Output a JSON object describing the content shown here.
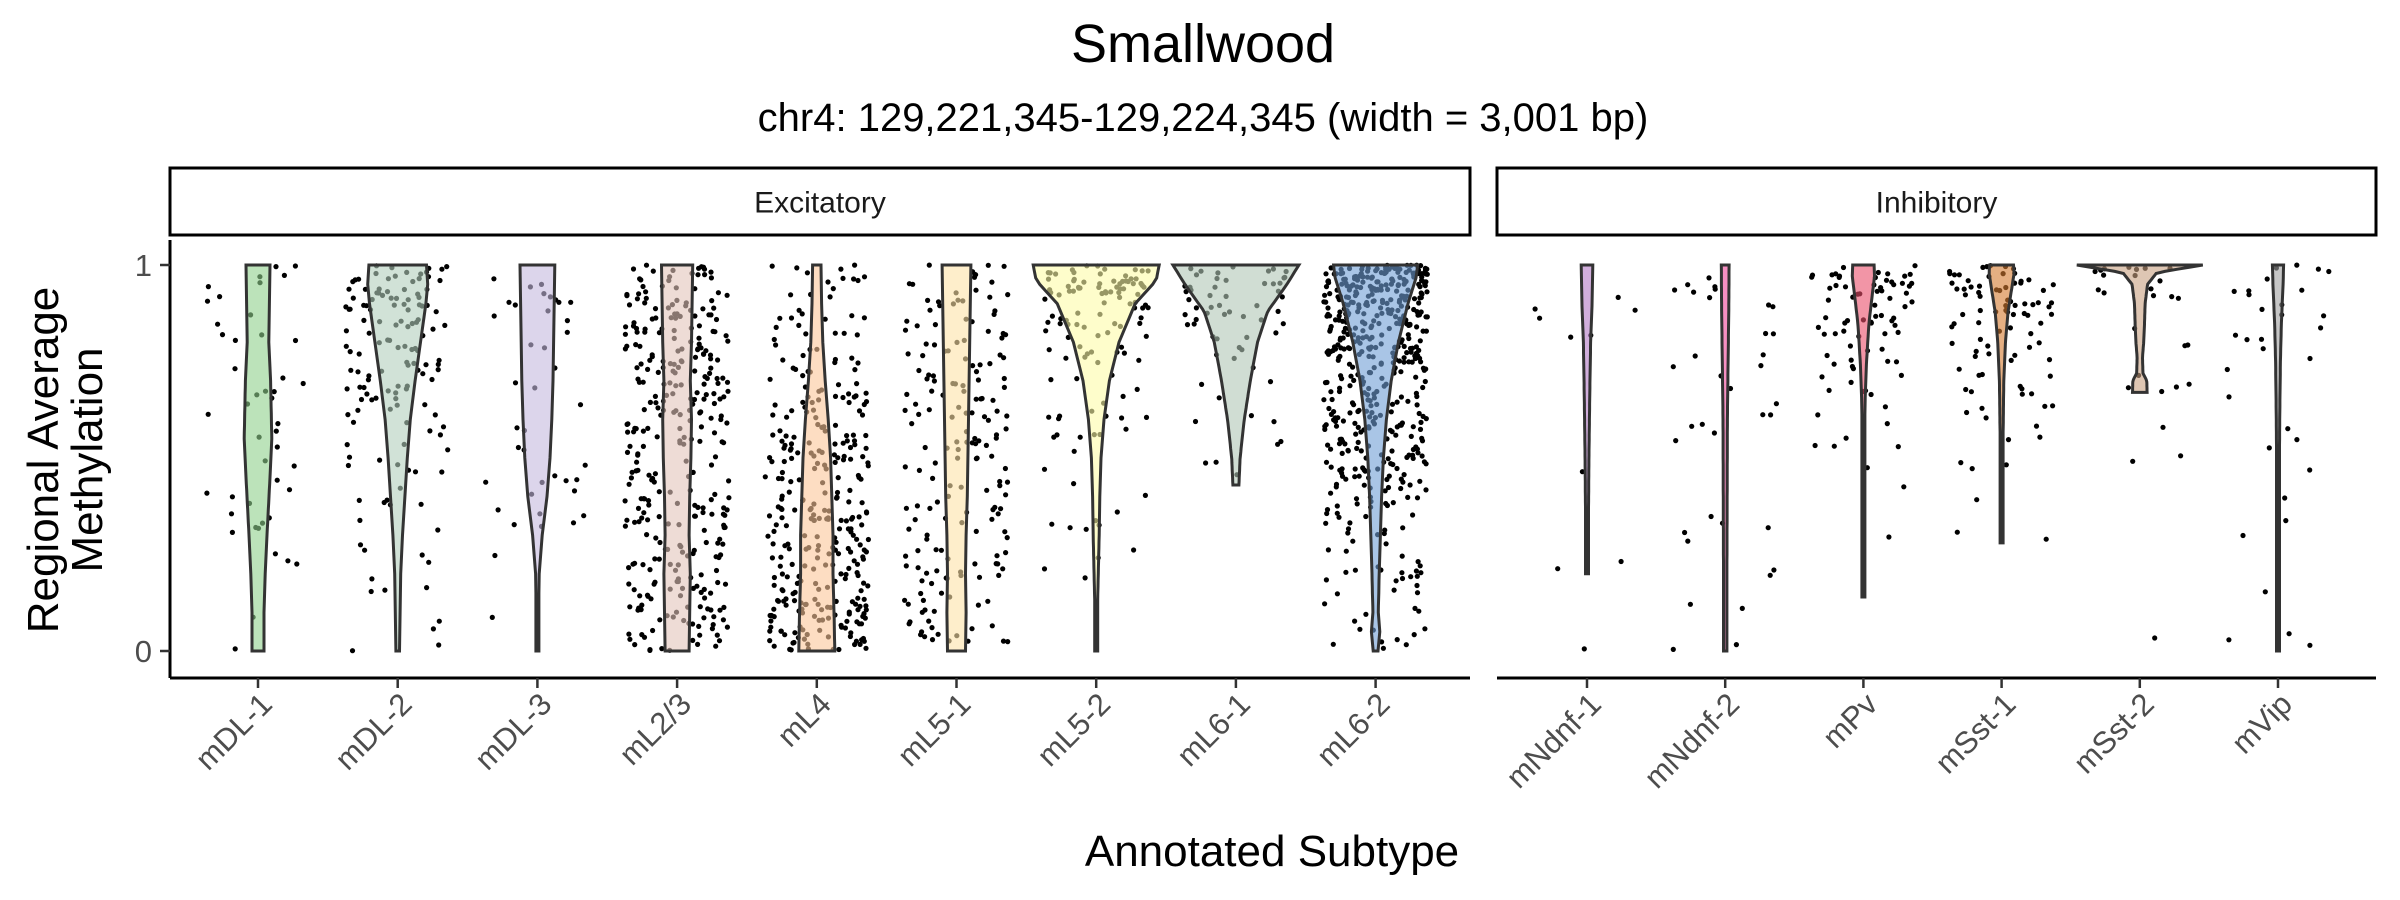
{
  "chart_data": {
    "type": "violin",
    "title": "Smallwood",
    "subtitle": "chr4: 129,221,345-129,224,345 (width = 3,001 bp)",
    "xlabel": "Annotated Subtype",
    "ylabel": [
      "Regional Average",
      "Methylation"
    ],
    "ylim": [
      0,
      1
    ],
    "yticks": [
      0,
      1
    ],
    "ytick_labels": [
      "0",
      "1"
    ],
    "grid": false,
    "points": "jittered raw observations",
    "facets": [
      {
        "name": "Excitatory",
        "categories": [
          {
            "label": "mDL-1",
            "color": "#8fd18c",
            "range": [
              0.0,
              1.0
            ],
            "density": [
              [
                0.0,
                1.0
              ],
              [
                0.1,
                1.0
              ],
              [
                0.2,
                1.2
              ],
              [
                0.3,
                1.5
              ],
              [
                0.45,
                2.0
              ],
              [
                0.55,
                2.3
              ],
              [
                0.7,
                2.1
              ],
              [
                0.8,
                1.8
              ],
              [
                0.9,
                1.9
              ],
              [
                1.0,
                2.0
              ]
            ],
            "npoints": 45
          },
          {
            "label": "mDL-2",
            "color": "#b2cfbd",
            "range": [
              0.0,
              1.0
            ],
            "density": [
              [
                0.0,
                0.3
              ],
              [
                0.1,
                0.4
              ],
              [
                0.2,
                0.5
              ],
              [
                0.3,
                0.8
              ],
              [
                0.4,
                1.2
              ],
              [
                0.5,
                1.6
              ],
              [
                0.6,
                2.1
              ],
              [
                0.7,
                2.9
              ],
              [
                0.8,
                3.8
              ],
              [
                0.9,
                4.7
              ],
              [
                0.95,
                5.0
              ],
              [
                1.0,
                4.8
              ]
            ],
            "npoints": 140
          },
          {
            "label": "mDL-3",
            "color": "#c4b9de",
            "range": [
              0.0,
              1.0
            ],
            "density": [
              [
                0.0,
                0.1
              ],
              [
                0.2,
                0.3
              ],
              [
                0.3,
                0.8
              ],
              [
                0.4,
                1.6
              ],
              [
                0.5,
                2.1
              ],
              [
                0.6,
                2.4
              ],
              [
                0.7,
                2.6
              ],
              [
                0.8,
                2.7
              ],
              [
                0.9,
                2.8
              ],
              [
                1.0,
                2.9
              ]
            ],
            "npoints": 40
          },
          {
            "label": "mL2/3",
            "color": "#e2c5bb",
            "range": [
              0.0,
              1.0
            ],
            "density": [
              [
                0.0,
                2.0
              ],
              [
                0.1,
                2.1
              ],
              [
                0.2,
                2.2
              ],
              [
                0.3,
                2.0
              ],
              [
                0.4,
                2.1
              ],
              [
                0.5,
                2.3
              ],
              [
                0.6,
                2.4
              ],
              [
                0.7,
                2.2
              ],
              [
                0.8,
                2.4
              ],
              [
                0.9,
                2.5
              ],
              [
                1.0,
                2.6
              ]
            ],
            "npoints": 330
          },
          {
            "label": "mL4",
            "color": "#fcc79a",
            "range": [
              0.0,
              1.0
            ],
            "density": [
              [
                0.0,
                3.0
              ],
              [
                0.08,
                2.9
              ],
              [
                0.2,
                2.7
              ],
              [
                0.3,
                2.7
              ],
              [
                0.4,
                2.5
              ],
              [
                0.5,
                2.3
              ],
              [
                0.6,
                1.9
              ],
              [
                0.7,
                1.4
              ],
              [
                0.8,
                1.0
              ],
              [
                0.9,
                0.8
              ],
              [
                1.0,
                0.7
              ]
            ],
            "npoints": 320
          },
          {
            "label": "mL5-1",
            "color": "#fde3a8",
            "range": [
              0.0,
              1.0
            ],
            "density": [
              [
                0.0,
                1.5
              ],
              [
                0.1,
                1.6
              ],
              [
                0.2,
                1.5
              ],
              [
                0.3,
                1.6
              ],
              [
                0.4,
                1.8
              ],
              [
                0.5,
                1.9
              ],
              [
                0.6,
                2.0
              ],
              [
                0.7,
                2.1
              ],
              [
                0.8,
                2.2
              ],
              [
                0.9,
                2.3
              ],
              [
                1.0,
                2.4
              ]
            ],
            "npoints": 180
          },
          {
            "label": "mL5-2",
            "color": "#fdfca9",
            "range": [
              0.0,
              1.0
            ],
            "density": [
              [
                0.0,
                0.05
              ],
              [
                0.1,
                0.2
              ],
              [
                0.2,
                0.35
              ],
              [
                0.3,
                0.5
              ],
              [
                0.4,
                0.6
              ],
              [
                0.5,
                0.8
              ],
              [
                0.6,
                1.3
              ],
              [
                0.7,
                2.2
              ],
              [
                0.8,
                3.8
              ],
              [
                0.9,
                6.5
              ],
              [
                0.96,
                10.0
              ],
              [
                1.0,
                10.5
              ]
            ],
            "npoints": 120
          },
          {
            "label": "mL6-1",
            "color": "#b0c6b6",
            "range": [
              0.43,
              1.0
            ],
            "density": [
              [
                0.43,
                0.5
              ],
              [
                0.5,
                0.7
              ],
              [
                0.6,
                1.4
              ],
              [
                0.7,
                2.4
              ],
              [
                0.8,
                3.6
              ],
              [
                0.88,
                5.3
              ],
              [
                0.95,
                8.5
              ],
              [
                1.0,
                10.5
              ]
            ],
            "npoints": 60
          },
          {
            "label": "mL6-2",
            "color": "#6f9ed6",
            "range": [
              0.0,
              1.0
            ],
            "density": [
              [
                0.0,
                0.4
              ],
              [
                0.05,
                0.7
              ],
              [
                0.1,
                0.45
              ],
              [
                0.2,
                0.6
              ],
              [
                0.3,
                0.8
              ],
              [
                0.4,
                1.0
              ],
              [
                0.5,
                1.3
              ],
              [
                0.6,
                1.8
              ],
              [
                0.7,
                2.6
              ],
              [
                0.8,
                3.8
              ],
              [
                0.9,
                5.4
              ],
              [
                0.97,
                6.8
              ],
              [
                1.0,
                7.0
              ]
            ],
            "npoints": 520
          }
        ]
      },
      {
        "name": "Inhibitory",
        "categories": [
          {
            "label": "mNdnf-1",
            "color": "#b278c5",
            "range": [
              0.2,
              1.0
            ],
            "density": [
              [
                0.2,
                0.5
              ],
              [
                0.35,
                0.6
              ],
              [
                0.5,
                0.8
              ],
              [
                0.65,
                1.1
              ],
              [
                0.8,
                1.5
              ],
              [
                0.9,
                2.1
              ],
              [
                1.0,
                2.4
              ]
            ],
            "npoints": 10
          },
          {
            "label": "mNdnf-2",
            "color": "#f0459a",
            "range": [
              0.0,
              1.0
            ],
            "density": [
              [
                0.0,
                0.7
              ],
              [
                0.2,
                0.7
              ],
              [
                0.4,
                0.8
              ],
              [
                0.6,
                0.9
              ],
              [
                0.8,
                1.3
              ],
              [
                0.9,
                1.5
              ],
              [
                1.0,
                1.6
              ]
            ],
            "npoints": 35
          },
          {
            "label": "mPv",
            "color": "#ea4f6a",
            "range": [
              0.14,
              1.0
            ],
            "density": [
              [
                0.14,
                0.1
              ],
              [
                0.3,
                0.2
              ],
              [
                0.5,
                0.4
              ],
              [
                0.65,
                0.7
              ],
              [
                0.75,
                1.3
              ],
              [
                0.85,
                2.3
              ],
              [
                0.92,
                3.6
              ],
              [
                0.97,
                4.6
              ],
              [
                1.0,
                4.4
              ]
            ],
            "npoints": 80
          },
          {
            "label": "mSst-1",
            "color": "#d47a2f",
            "range": [
              0.28,
              1.0
            ],
            "density": [
              [
                0.28,
                0.2
              ],
              [
                0.4,
                0.4
              ],
              [
                0.55,
                0.6
              ],
              [
                0.7,
                0.9
              ],
              [
                0.8,
                1.6
              ],
              [
                0.88,
                2.7
              ],
              [
                0.94,
                4.2
              ],
              [
                0.98,
                5.2
              ],
              [
                1.0,
                4.9
              ]
            ],
            "npoints": 90
          },
          {
            "label": "mSst-2",
            "color": "#c8a080",
            "range": [
              0.67,
              1.0
            ],
            "density": [
              [
                0.67,
                3.0
              ],
              [
                0.7,
                2.9
              ],
              [
                0.72,
                1.3
              ],
              [
                0.76,
                1.1
              ],
              [
                0.8,
                1.6
              ],
              [
                0.84,
                1.9
              ],
              [
                0.9,
                2.2
              ],
              [
                0.95,
                3.2
              ],
              [
                0.98,
                7.0
              ],
              [
                1.0,
                26.0
              ]
            ],
            "npoints": 28
          },
          {
            "label": "mVip",
            "color": "#a0a0a0",
            "range": [
              0.0,
              1.0
            ],
            "density": [
              [
                0.0,
                0.3
              ],
              [
                0.2,
                0.4
              ],
              [
                0.4,
                0.5
              ],
              [
                0.6,
                0.7
              ],
              [
                0.75,
                1.0
              ],
              [
                0.85,
                1.4
              ],
              [
                0.95,
                2.1
              ],
              [
                1.0,
                2.3
              ]
            ],
            "npoints": 32
          }
        ]
      }
    ]
  }
}
